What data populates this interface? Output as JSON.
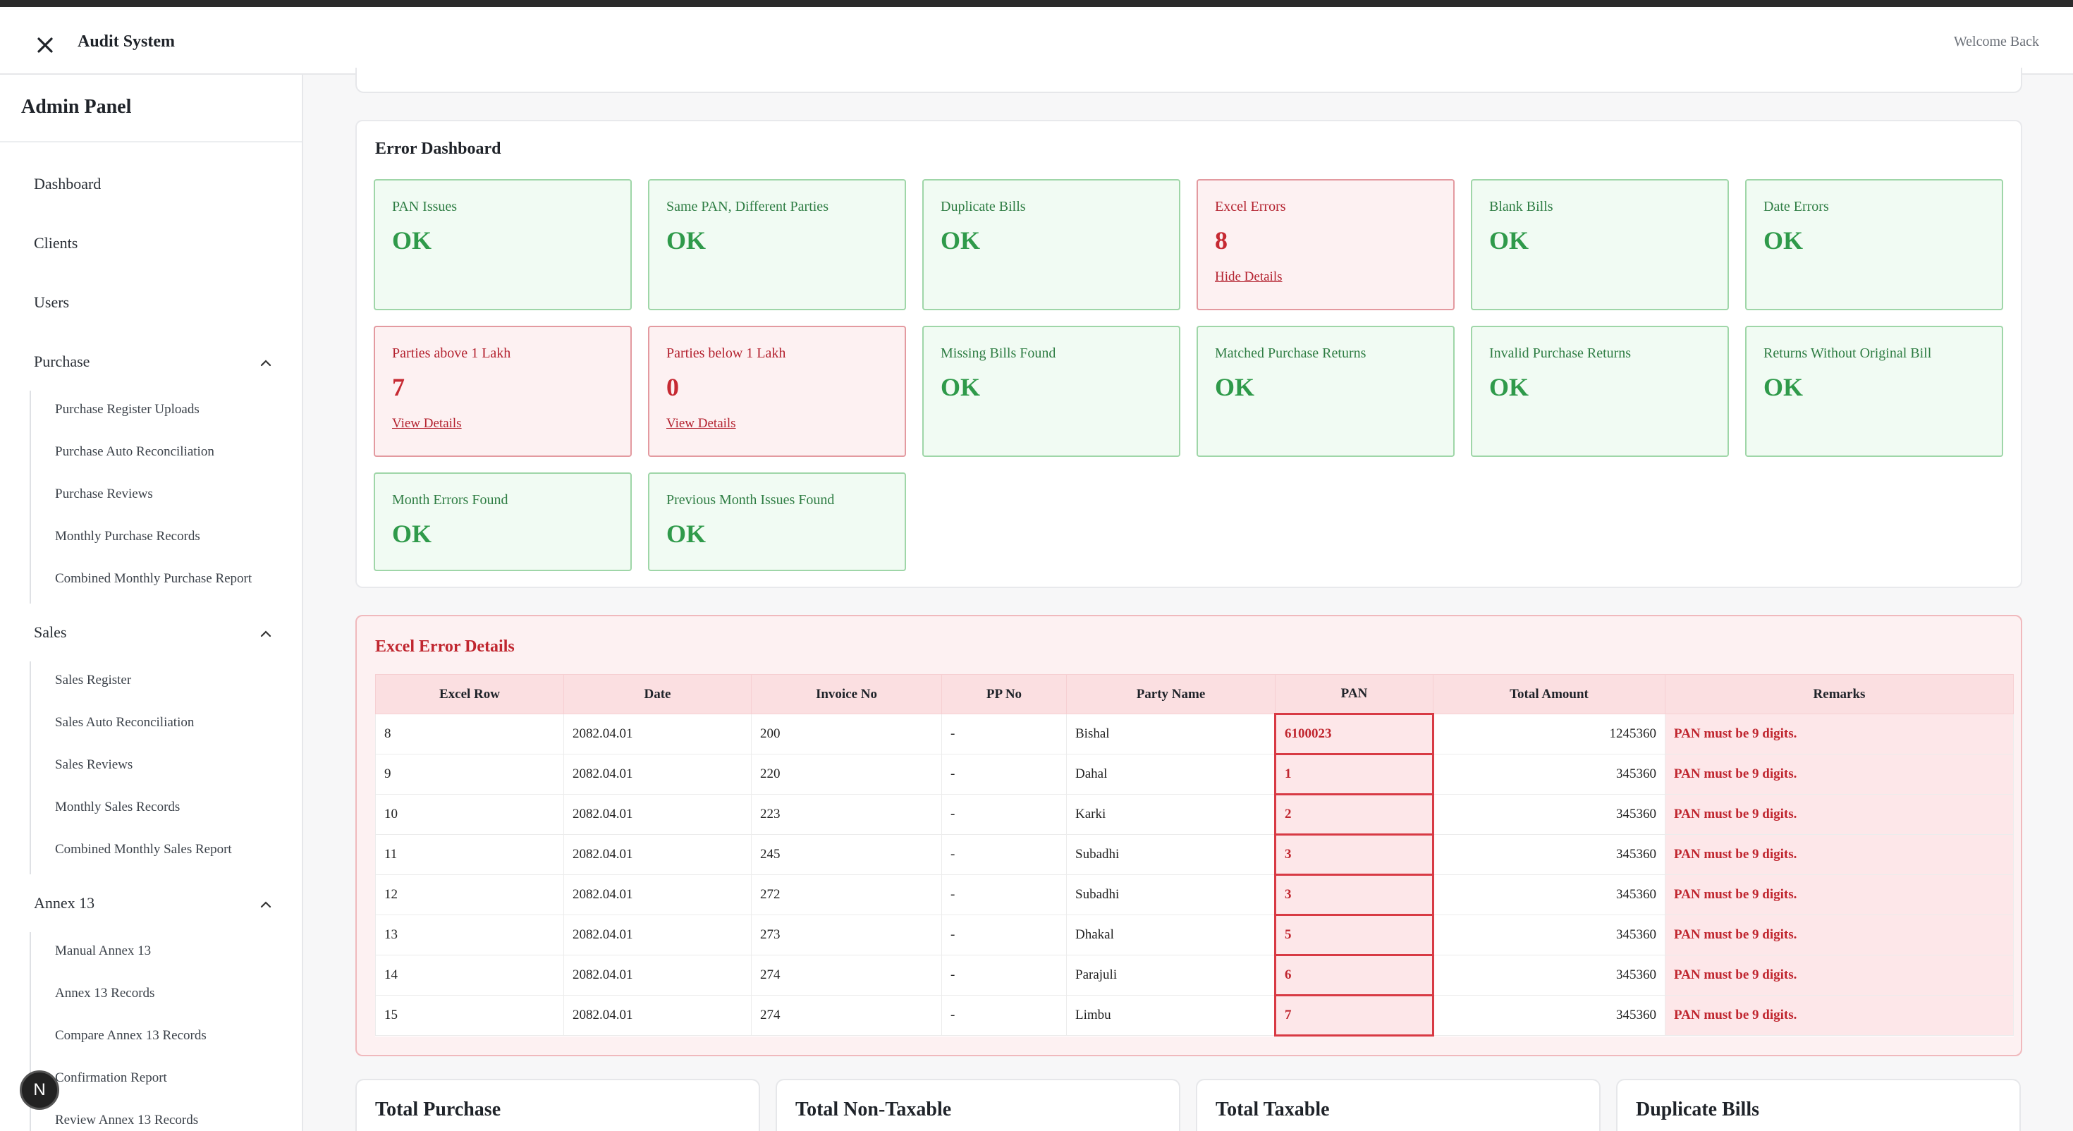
{
  "header": {
    "app_title": "Audit System",
    "welcome": "Welcome Back"
  },
  "sidebar": {
    "title": "Admin Panel",
    "items": {
      "dashboard": "Dashboard",
      "clients": "Clients",
      "users": "Users"
    },
    "purchase": {
      "label": "Purchase",
      "children": [
        "Purchase Register Uploads",
        "Purchase Auto Reconciliation",
        "Purchase Reviews",
        "Monthly Purchase Records",
        "Combined Monthly Purchase Report"
      ]
    },
    "sales": {
      "label": "Sales",
      "children": [
        "Sales Register",
        "Sales Auto Reconciliation",
        "Sales Reviews",
        "Monthly Sales Records",
        "Combined Monthly Sales Report"
      ]
    },
    "annex": {
      "label": "Annex 13",
      "children": [
        "Manual Annex 13",
        "Annex 13 Records",
        "Compare Annex 13 Records",
        "Confirmation Report",
        "Review Annex 13 Records"
      ]
    },
    "avatar": "N"
  },
  "error_dashboard": {
    "title": "Error Dashboard",
    "cards": [
      {
        "label": "PAN Issues",
        "value": "OK",
        "status": "ok"
      },
      {
        "label": "Same PAN, Different Parties",
        "value": "OK",
        "status": "ok"
      },
      {
        "label": "Duplicate Bills",
        "value": "OK",
        "status": "ok"
      },
      {
        "label": "Excel Errors",
        "value": "8",
        "status": "error",
        "link": "Hide Details"
      },
      {
        "label": "Blank Bills",
        "value": "OK",
        "status": "ok"
      },
      {
        "label": "Date Errors",
        "value": "OK",
        "status": "ok"
      },
      {
        "label": "Parties above 1 Lakh",
        "value": "7",
        "status": "error",
        "link": "View Details"
      },
      {
        "label": "Parties below 1 Lakh",
        "value": "0",
        "status": "error",
        "link": "View Details"
      },
      {
        "label": "Missing Bills Found",
        "value": "OK",
        "status": "ok"
      },
      {
        "label": "Matched Purchase Returns",
        "value": "OK",
        "status": "ok"
      },
      {
        "label": "Invalid Purchase Returns",
        "value": "OK",
        "status": "ok"
      },
      {
        "label": "Returns Without Original Bill",
        "value": "OK",
        "status": "ok"
      },
      {
        "label": "Month Errors Found",
        "value": "OK",
        "status": "ok"
      },
      {
        "label": "Previous Month Issues Found",
        "value": "OK",
        "status": "ok"
      }
    ]
  },
  "excel_errors": {
    "title": "Excel Error Details",
    "columns": [
      "Excel Row",
      "Date",
      "Invoice No",
      "PP No",
      "Party Name",
      "PAN",
      "Total Amount",
      "Remarks"
    ],
    "rows": [
      [
        "8",
        "2082.04.01",
        "200",
        "-",
        "Bishal",
        "6100023",
        "1245360",
        "PAN must be 9 digits."
      ],
      [
        "9",
        "2082.04.01",
        "220",
        "-",
        "Dahal",
        "1",
        "345360",
        "PAN must be 9 digits."
      ],
      [
        "10",
        "2082.04.01",
        "223",
        "-",
        "Karki",
        "2",
        "345360",
        "PAN must be 9 digits."
      ],
      [
        "11",
        "2082.04.01",
        "245",
        "-",
        "Subadhi",
        "3",
        "345360",
        "PAN must be 9 digits."
      ],
      [
        "12",
        "2082.04.01",
        "272",
        "-",
        "Subadhi",
        "3",
        "345360",
        "PAN must be 9 digits."
      ],
      [
        "13",
        "2082.04.01",
        "273",
        "-",
        "Dhakal",
        "5",
        "345360",
        "PAN must be 9 digits."
      ],
      [
        "14",
        "2082.04.01",
        "274",
        "-",
        "Parajuli",
        "6",
        "345360",
        "PAN must be 9 digits."
      ],
      [
        "15",
        "2082.04.01",
        "274",
        "-",
        "Limbu",
        "7",
        "345360",
        "PAN must be 9 digits."
      ]
    ]
  },
  "summary_cards": [
    "Total Purchase",
    "Total Non-Taxable",
    "Total Taxable",
    "Duplicate Bills"
  ]
}
